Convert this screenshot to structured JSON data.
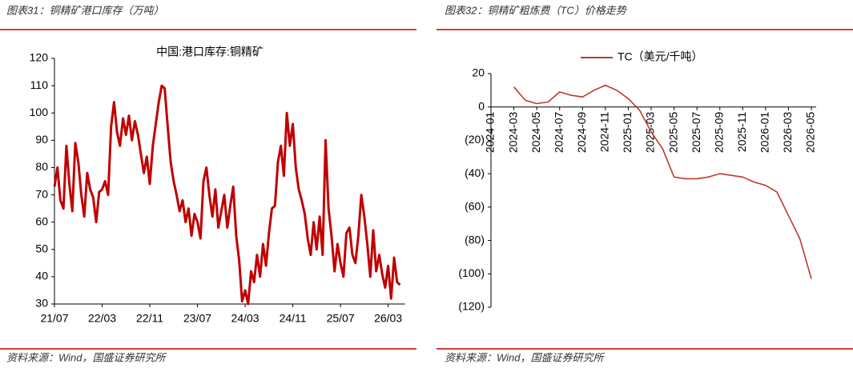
{
  "chart_data": [
    {
      "type": "line",
      "caption": "图表31：铜精矿港口库存（万吨）",
      "title": "中国:港口库存:铜精矿",
      "source": "资料来源：Wind，国盛证券研究所",
      "categories": [
        "21/07",
        null,
        null,
        null,
        null,
        null,
        null,
        null,
        null,
        null,
        null,
        null,
        null,
        null,
        null,
        null,
        "22/03",
        null,
        null,
        null,
        null,
        null,
        null,
        null,
        null,
        null,
        null,
        null,
        null,
        null,
        null,
        null,
        "22/11",
        null,
        null,
        null,
        null,
        null,
        null,
        null,
        null,
        null,
        null,
        null,
        null,
        null,
        null,
        null,
        "23/07",
        null,
        null,
        null,
        null,
        null,
        null,
        null,
        null,
        null,
        null,
        null,
        null,
        null,
        null,
        null,
        "24/03",
        null,
        null,
        null,
        null,
        null,
        null,
        null,
        null,
        null,
        null,
        null,
        null,
        null,
        null,
        null,
        "24/11",
        null,
        null,
        null,
        null,
        null,
        null,
        null,
        null,
        null,
        null,
        null,
        null,
        null,
        null,
        null,
        "25/07",
        null,
        null,
        null,
        null,
        null,
        null,
        null,
        null,
        null,
        null,
        null,
        null,
        null,
        null,
        null,
        "26/03",
        null,
        null,
        null,
        null
      ],
      "values": [
        73,
        80,
        68,
        65,
        88,
        74,
        64,
        89,
        82,
        70,
        62,
        78,
        72,
        69,
        60,
        71,
        72,
        75,
        70,
        95,
        104,
        93,
        88,
        98,
        92,
        99,
        90,
        97,
        92,
        85,
        78,
        84,
        74,
        88,
        96,
        104,
        110,
        109,
        95,
        82,
        75,
        70,
        64,
        68,
        60,
        65,
        55,
        63,
        60,
        54,
        75,
        80,
        70,
        62,
        72,
        58,
        64,
        70,
        58,
        66,
        73,
        55,
        46,
        31,
        35,
        30,
        42,
        38,
        48,
        40,
        52,
        44,
        56,
        65,
        66,
        82,
        88,
        77,
        100,
        88,
        96,
        80,
        72,
        68,
        63,
        54,
        48,
        60,
        50,
        62,
        48,
        90,
        65,
        55,
        42,
        52,
        45,
        40,
        56,
        58,
        48,
        45,
        55,
        70,
        62,
        52,
        40,
        57,
        42,
        48,
        41,
        36,
        44,
        32,
        47,
        38,
        37
      ],
      "color": "#c00000",
      "ylim": [
        30,
        120
      ],
      "yticks": [
        30,
        40,
        50,
        60,
        70,
        80,
        90,
        100,
        110,
        120
      ],
      "grid": false
    },
    {
      "type": "line",
      "caption": "图表32：铜精矿粗炼费（TC）价格走势",
      "source": "资料来源：Wind，国盛证券研究所",
      "categories": [
        "2024-01",
        null,
        "2024-03",
        null,
        "2024-05",
        null,
        "2024-07",
        null,
        "2024-09",
        null,
        "2024-11",
        null,
        "2025-01",
        null,
        "2025-03",
        null,
        "2025-05",
        null,
        "2025-07",
        null,
        "2025-09",
        null,
        "2025-11",
        null,
        "2026-01",
        null,
        "2026-03",
        null,
        "2026-05"
      ],
      "series": [
        {
          "name": "TC（美元/千吨）",
          "color": "#c0392b",
          "values": [
            null,
            null,
            12,
            4,
            2,
            3,
            9,
            7,
            6,
            10,
            13,
            10,
            5,
            -2,
            -15,
            -25,
            -42,
            -43,
            -43,
            -42,
            -40,
            -41,
            -42,
            -45,
            -47,
            -51,
            -65,
            -79,
            -103
          ]
        }
      ],
      "ylim": [
        -120,
        20
      ],
      "yticks": [
        20,
        0,
        {
          "value": -20,
          "label": "(20)"
        },
        {
          "value": -40,
          "label": "(40)"
        },
        {
          "value": -60,
          "label": "(60)"
        },
        {
          "value": -80,
          "label": "(80)"
        },
        {
          "value": -100,
          "label": "(100)"
        },
        {
          "value": -120,
          "label": "(120)"
        }
      ],
      "grid": false
    }
  ]
}
